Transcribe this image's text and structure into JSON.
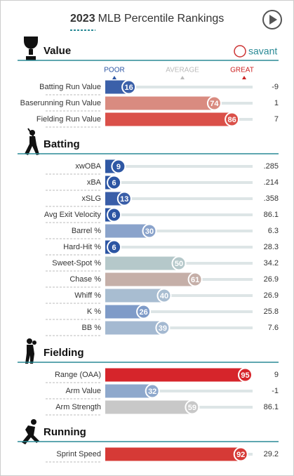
{
  "header": {
    "title_year": "2023",
    "title_text": "MLB Percentile Rankings"
  },
  "legend": {
    "poor": "POOR",
    "average": "AVERAGE",
    "great": "GREAT"
  },
  "logo": "savant",
  "sections": [
    {
      "title": "Value",
      "rows": [
        {
          "label": "Batting Run Value",
          "percentile": 16,
          "value": "-9",
          "color": "#3b60a9"
        },
        {
          "label": "Baserunning Run Value",
          "percentile": 74,
          "value": "1",
          "color": "#d98b80"
        },
        {
          "label": "Fielding Run Value",
          "percentile": 86,
          "value": "7",
          "color": "#da5049"
        }
      ]
    },
    {
      "title": "Batting",
      "rows": [
        {
          "label": "xwOBA",
          "percentile": 9,
          "value": ".285",
          "color": "#2f58a4"
        },
        {
          "label": "xBA",
          "percentile": 6,
          "value": ".214",
          "color": "#2c55a3"
        },
        {
          "label": "xSLG",
          "percentile": 13,
          "value": ".358",
          "color": "#3a5ea8"
        },
        {
          "label": "Avg Exit Velocity",
          "percentile": 6,
          "value": "86.1",
          "color": "#2c55a3"
        },
        {
          "label": "Barrel %",
          "percentile": 30,
          "value": "6.3",
          "color": "#8aa3cb"
        },
        {
          "label": "Hard-Hit %",
          "percentile": 6,
          "value": "28.3",
          "color": "#2c55a3"
        },
        {
          "label": "Sweet-Spot %",
          "percentile": 50,
          "value": "34.2",
          "color": "#b5c8ca"
        },
        {
          "label": "Chase %",
          "percentile": 61,
          "value": "26.9",
          "color": "#c5afa8"
        },
        {
          "label": "Whiff %",
          "percentile": 40,
          "value": "26.9",
          "color": "#a8bdd1"
        },
        {
          "label": "K %",
          "percentile": 26,
          "value": "25.8",
          "color": "#7f9bc8"
        },
        {
          "label": "BB %",
          "percentile": 39,
          "value": "7.6",
          "color": "#a4b9d1"
        }
      ]
    },
    {
      "title": "Fielding",
      "rows": [
        {
          "label": "Range (OAA)",
          "percentile": 95,
          "value": "9",
          "color": "#d6252b"
        },
        {
          "label": "Arm Value",
          "percentile": 32,
          "value": "-1",
          "color": "#8ea8cc"
        },
        {
          "label": "Arm Strength",
          "percentile": 59,
          "value": "86.1",
          "color": "#c8c8c8"
        }
      ]
    },
    {
      "title": "Running",
      "rows": [
        {
          "label": "Sprint Speed",
          "percentile": 92,
          "value": "29.2",
          "color": "#d63a36"
        }
      ]
    }
  ]
}
